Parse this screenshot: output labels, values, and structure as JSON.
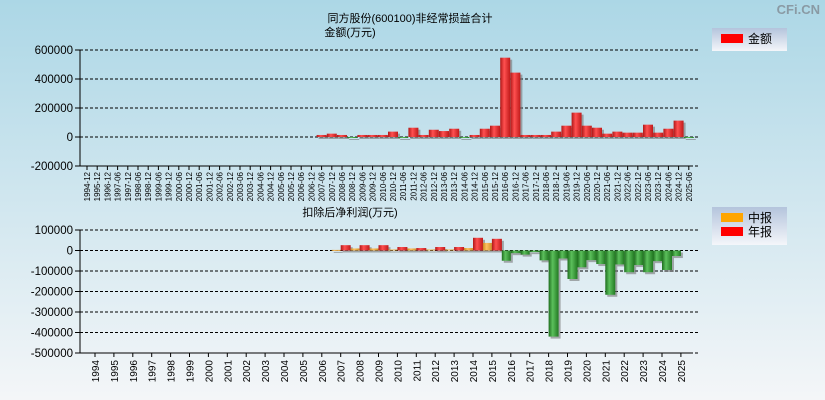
{
  "watermark": "CFi.CN",
  "colors": {
    "annual": "#ff0000",
    "interim": "#ffa500",
    "negative": "#2e8b2e",
    "amount": "#ff0000"
  },
  "chart_data": [
    {
      "type": "bar",
      "title": "同方股份(600100)非经常损益合计",
      "ylabel": "金额(万元)",
      "legend": [
        {
          "name": "金额",
          "color": "#ff0000"
        }
      ],
      "legend_position": "right",
      "grid": true,
      "ylim": [
        -200000,
        600000
      ],
      "yticks": [
        600000,
        400000,
        200000,
        0,
        -200000
      ],
      "categories": [
        "1994-12",
        "1995-12",
        "1996-12",
        "1997-06",
        "1997-12",
        "1998-06",
        "1998-12",
        "1999-06",
        "1999-12",
        "2000-06",
        "2000-12",
        "2001-06",
        "2001-12",
        "2002-06",
        "2002-12",
        "2003-06",
        "2003-12",
        "2004-06",
        "2004-12",
        "2005-06",
        "2005-12",
        "2006-06",
        "2006-12",
        "2007-06",
        "2007-12",
        "2008-06",
        "2008-12",
        "2009-06",
        "2009-12",
        "2010-06",
        "2010-12",
        "2011-06",
        "2011-12",
        "2012-06",
        "2012-12",
        "2013-06",
        "2013-12",
        "2014-06",
        "2014-12",
        "2015-06",
        "2015-12",
        "2016-06",
        "2016-12",
        "2017-06",
        "2017-12",
        "2018-06",
        "2018-12",
        "2019-06",
        "2019-12",
        "2020-06",
        "2020-12",
        "2021-06",
        "2021-12",
        "2022-06",
        "2022-12",
        "2023-06",
        "2023-12",
        "2024-06",
        "2024-12",
        "2025-06"
      ],
      "series": [
        {
          "name": "金额",
          "values": [
            null,
            null,
            null,
            null,
            null,
            null,
            null,
            null,
            null,
            null,
            null,
            null,
            null,
            null,
            null,
            null,
            null,
            null,
            null,
            null,
            null,
            null,
            null,
            14000,
            23000,
            14000,
            -3000,
            14000,
            14000,
            14000,
            37000,
            -2000,
            64000,
            14000,
            50000,
            41000,
            57000,
            -2000,
            14000,
            57000,
            78000,
            547000,
            444000,
            14000,
            14000,
            14000,
            37000,
            78000,
            168000,
            78000,
            64000,
            23000,
            37000,
            30000,
            30000,
            85000,
            30000,
            57000,
            113000,
            -3000
          ]
        }
      ]
    },
    {
      "type": "bar",
      "title": "扣除后净利润(万元)",
      "legend": [
        {
          "name": "中报",
          "color": "#ffa500"
        },
        {
          "name": "年报",
          "color": "#ff0000"
        }
      ],
      "legend_position": "right",
      "grid": true,
      "ylim": [
        -500000,
        100000
      ],
      "yticks": [
        100000,
        0,
        -100000,
        -200000,
        -300000,
        -400000,
        -500000
      ],
      "categories": [
        "1994",
        "1995",
        "1996",
        "1997",
        "1998",
        "1999",
        "2000",
        "2001",
        "2002",
        "2003",
        "2004",
        "2005",
        "2006",
        "2007",
        "2008",
        "2009",
        "2010",
        "2011",
        "2012",
        "2013",
        "2014",
        "2015",
        "2016",
        "2017",
        "2018",
        "2019",
        "2020",
        "2021",
        "2022",
        "2023",
        "2024",
        "2025"
      ],
      "series": [
        {
          "name": "中报",
          "values": [
            null,
            null,
            null,
            null,
            null,
            null,
            null,
            null,
            null,
            null,
            null,
            null,
            null,
            3000,
            10000,
            10000,
            5000,
            10000,
            5000,
            5000,
            12000,
            37000,
            -50000,
            -20000,
            -48000,
            -39000,
            -82000,
            -66000,
            -68000,
            -71000,
            -52000,
            -27000
          ]
        },
        {
          "name": "年报",
          "values": [
            null,
            null,
            null,
            null,
            null,
            null,
            null,
            null,
            null,
            null,
            null,
            null,
            null,
            26000,
            26000,
            26000,
            17000,
            12000,
            17000,
            17000,
            62000,
            57000,
            -13000,
            -8000,
            -420000,
            -139000,
            -47000,
            -216000,
            -106000,
            -106000,
            -95000,
            null
          ]
        }
      ]
    }
  ]
}
